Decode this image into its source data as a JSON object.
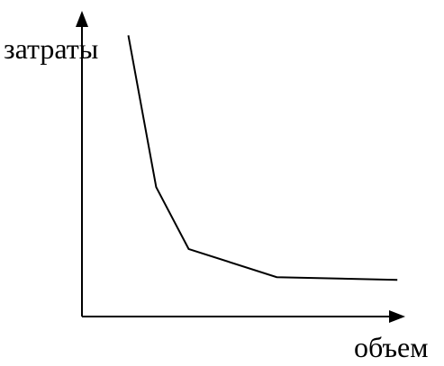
{
  "chart_data": {
    "type": "line",
    "title": "",
    "xlabel": "объем",
    "ylabel": "затраты",
    "grid": false,
    "ticks": false,
    "series": [
      {
        "x": [
          1.0,
          1.6,
          2.3,
          4.2,
          6.8
        ],
        "y": [
          10.0,
          4.6,
          2.4,
          1.4,
          1.3
        ]
      }
    ],
    "xlim": [
      0,
      7.3
    ],
    "ylim": [
      0,
      11
    ]
  }
}
